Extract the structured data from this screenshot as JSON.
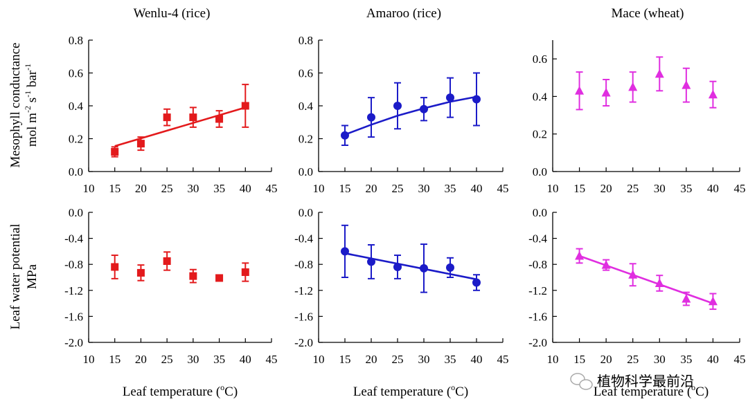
{
  "column_titles": [
    "Wenlu-4 (rice)",
    "Amaroo (rice)",
    "Mace (wheat)"
  ],
  "row_labels": {
    "top": {
      "line1": "Mesophyll conductance",
      "line2_parts": [
        "mol m",
        "-2",
        " s",
        "-1",
        " bar",
        "-1"
      ]
    },
    "bottom": {
      "line1": "Leaf water potential",
      "line2": "MPa"
    }
  },
  "xlabel": {
    "prefix": "Leaf temperature (",
    "sup": "o",
    "suffix": "C)"
  },
  "watermark": "植物科学最前沿",
  "colors": {
    "Wenlu-4": "#e31a1c",
    "Amaroo": "#1b1bc8",
    "Mace": "#e02ee0"
  },
  "chart_data": [
    {
      "type": "scatter",
      "cultivar": "Wenlu-4",
      "crop": "rice",
      "marker": "square",
      "color": "#e31a1c",
      "title": "Wenlu-4 (rice)",
      "xlabel": "Leaf temperature (oC)",
      "ylabel": "Mesophyll conductance mol m-2 s-1 bar-1",
      "xlim": [
        10,
        45
      ],
      "xticks": [
        10,
        15,
        20,
        25,
        30,
        35,
        40,
        45
      ],
      "ylim": [
        0,
        0.8
      ],
      "yticks": [
        "0.0",
        "0.2",
        "0.4",
        "0.6",
        "0.8"
      ],
      "x": [
        15,
        20,
        25,
        30,
        35,
        40
      ],
      "y": [
        0.12,
        0.17,
        0.33,
        0.33,
        0.32,
        0.4
      ],
      "err": [
        0.03,
        0.04,
        0.05,
        0.06,
        0.05,
        0.13
      ],
      "fit": {
        "kind": "linear",
        "points": [
          [
            15,
            0.155
          ],
          [
            40,
            0.39
          ]
        ]
      }
    },
    {
      "type": "scatter",
      "cultivar": "Amaroo",
      "crop": "rice",
      "marker": "circle",
      "color": "#1b1bc8",
      "title": "Amaroo (rice)",
      "xlabel": "Leaf temperature (oC)",
      "ylabel": "",
      "xlim": [
        10,
        45
      ],
      "xticks": [
        10,
        15,
        20,
        25,
        30,
        35,
        40,
        45
      ],
      "ylim": [
        0,
        0.8
      ],
      "yticks": [
        "0.0",
        "0.2",
        "0.4",
        "0.6",
        "0.8"
      ],
      "x": [
        15,
        20,
        25,
        30,
        35,
        40
      ],
      "y": [
        0.22,
        0.33,
        0.4,
        0.38,
        0.45,
        0.44
      ],
      "err": [
        0.06,
        0.12,
        0.14,
        0.07,
        0.12,
        0.16
      ],
      "fit": {
        "kind": "curve",
        "points": [
          [
            15,
            0.225
          ],
          [
            20,
            0.285
          ],
          [
            25,
            0.34
          ],
          [
            30,
            0.385
          ],
          [
            35,
            0.425
          ],
          [
            40,
            0.455
          ]
        ]
      }
    },
    {
      "type": "scatter",
      "cultivar": "Mace",
      "crop": "wheat",
      "marker": "triangle",
      "color": "#e02ee0",
      "title": "Mace (wheat)",
      "xlabel": "Leaf temperature (oC)",
      "ylabel": "",
      "xlim": [
        10,
        45
      ],
      "xticks": [
        10,
        15,
        20,
        25,
        30,
        35,
        40,
        45
      ],
      "ylim": [
        0,
        0.7
      ],
      "yticks": [
        "0.0",
        "0.2",
        "0.4",
        "0.6"
      ],
      "x": [
        15,
        20,
        25,
        30,
        35,
        40
      ],
      "y": [
        0.43,
        0.42,
        0.45,
        0.52,
        0.46,
        0.41
      ],
      "err": [
        0.1,
        0.07,
        0.08,
        0.09,
        0.09,
        0.07
      ],
      "fit": null
    },
    {
      "type": "scatter",
      "cultivar": "Wenlu-4",
      "crop": "rice",
      "marker": "square",
      "color": "#e31a1c",
      "title": "",
      "xlabel": "Leaf temperature (oC)",
      "ylabel": "Leaf water potential MPa",
      "xlim": [
        10,
        45
      ],
      "xticks": [
        10,
        15,
        20,
        25,
        30,
        35,
        40,
        45
      ],
      "ylim": [
        -2.0,
        0
      ],
      "yticks": [
        "-2.0",
        "-1.6",
        "-1.2",
        "-0.8",
        "-0.4",
        "0.0"
      ],
      "x": [
        15,
        20,
        25,
        30,
        35,
        40
      ],
      "y": [
        -0.84,
        -0.93,
        -0.75,
        -0.98,
        -1.01,
        -0.92
      ],
      "err": [
        0.18,
        0.12,
        0.14,
        0.1,
        0.04,
        0.14
      ],
      "fit": null
    },
    {
      "type": "scatter",
      "cultivar": "Amaroo",
      "crop": "rice",
      "marker": "circle",
      "color": "#1b1bc8",
      "title": "",
      "xlabel": "Leaf temperature (oC)",
      "ylabel": "",
      "xlim": [
        10,
        45
      ],
      "xticks": [
        10,
        15,
        20,
        25,
        30,
        35,
        40,
        45
      ],
      "ylim": [
        -2.0,
        0
      ],
      "yticks": [
        "-2.0",
        "-1.6",
        "-1.2",
        "-0.8",
        "-0.4",
        "0.0"
      ],
      "x": [
        15,
        20,
        25,
        30,
        35,
        40
      ],
      "y": [
        -0.6,
        -0.76,
        -0.84,
        -0.86,
        -0.85,
        -1.08
      ],
      "err": [
        0.4,
        0.26,
        0.18,
        0.37,
        0.15,
        0.12
      ],
      "fit": {
        "kind": "linear",
        "points": [
          [
            15,
            -0.63
          ],
          [
            40,
            -1.03
          ]
        ]
      }
    },
    {
      "type": "scatter",
      "cultivar": "Mace",
      "crop": "wheat",
      "marker": "triangle",
      "color": "#e02ee0",
      "title": "",
      "xlabel": "Leaf temperature (oC)",
      "ylabel": "",
      "xlim": [
        10,
        45
      ],
      "xticks": [
        10,
        15,
        20,
        25,
        30,
        35,
        40,
        45
      ],
      "ylim": [
        -2.0,
        0
      ],
      "yticks": [
        "-2.0",
        "-1.6",
        "-1.2",
        "-0.8",
        "-0.4",
        "0.0"
      ],
      "x": [
        15,
        20,
        25,
        30,
        35,
        40
      ],
      "y": [
        -0.67,
        -0.81,
        -0.96,
        -1.09,
        -1.33,
        -1.37
      ],
      "err": [
        0.11,
        0.08,
        0.17,
        0.12,
        0.1,
        0.12
      ],
      "fit": {
        "kind": "linear",
        "points": [
          [
            15,
            -0.67
          ],
          [
            40,
            -1.4
          ]
        ]
      }
    }
  ]
}
